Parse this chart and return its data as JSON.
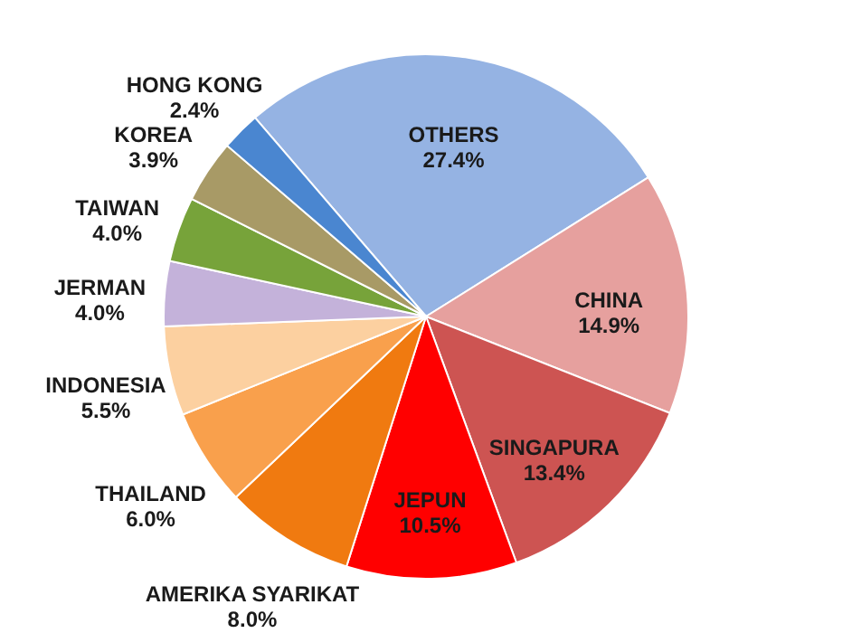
{
  "chart_data": {
    "type": "pie",
    "categories": [
      "OTHERS",
      "CHINA",
      "SINGAPURA",
      "JEPUN",
      "AMERIKA SYARIKAT",
      "THAILAND",
      "INDONESIA",
      "JERMAN",
      "TAIWAN",
      "KOREA",
      "HONG KONG"
    ],
    "values": [
      27.4,
      14.9,
      13.4,
      10.5,
      8.0,
      6.0,
      5.5,
      4.0,
      4.0,
      3.9,
      2.4
    ],
    "value_labels": [
      "27.4%",
      "14.9%",
      "13.4%",
      "10.5%",
      "8.0%",
      "6.0%",
      "5.5%",
      "4.0%",
      "4.0%",
      "3.9%",
      "2.4%"
    ],
    "colors": [
      "#95b3e3",
      "#e6a09e",
      "#cd5452",
      "#ff0000",
      "#f07a10",
      "#f9a04c",
      "#fcd0a0",
      "#c4b2da",
      "#77a33a",
      "#a89a66",
      "#4a86d0"
    ]
  }
}
